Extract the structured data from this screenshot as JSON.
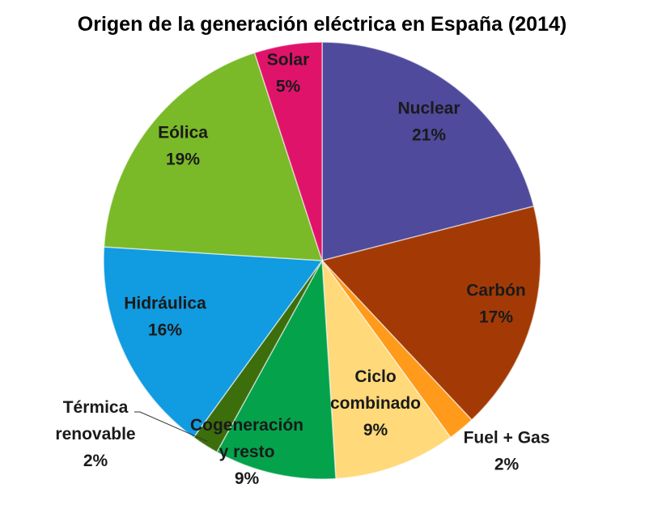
{
  "chart_data": {
    "type": "pie",
    "title": "Origen de la generación eléctrica en España (2014)",
    "slices": [
      {
        "name": "Nuclear",
        "value": 21,
        "label": "21%",
        "color": "#4f4a9b"
      },
      {
        "name": "Carbón",
        "value": 17,
        "label": "17%",
        "color": "#a33a06"
      },
      {
        "name": "Fuel + Gas",
        "value": 2,
        "label": "2%",
        "color": "#ff9a1a"
      },
      {
        "name": "Ciclo combinado",
        "value": 9,
        "label": "9%",
        "color": "#ffd97a"
      },
      {
        "name": "Cogeneración y resto",
        "value": 9,
        "label": "9%",
        "color": "#05a24c"
      },
      {
        "name": "Térmica renovable",
        "value": 2,
        "label": "2%",
        "color": "#3c6e0c"
      },
      {
        "name": "Hidráulica",
        "value": 16,
        "label": "16%",
        "color": "#119be0"
      },
      {
        "name": "Eólica",
        "value": 19,
        "label": "19%",
        "color": "#7ab928"
      },
      {
        "name": "Solar",
        "value": 5,
        "label": "5%",
        "color": "#e0136a"
      }
    ]
  }
}
